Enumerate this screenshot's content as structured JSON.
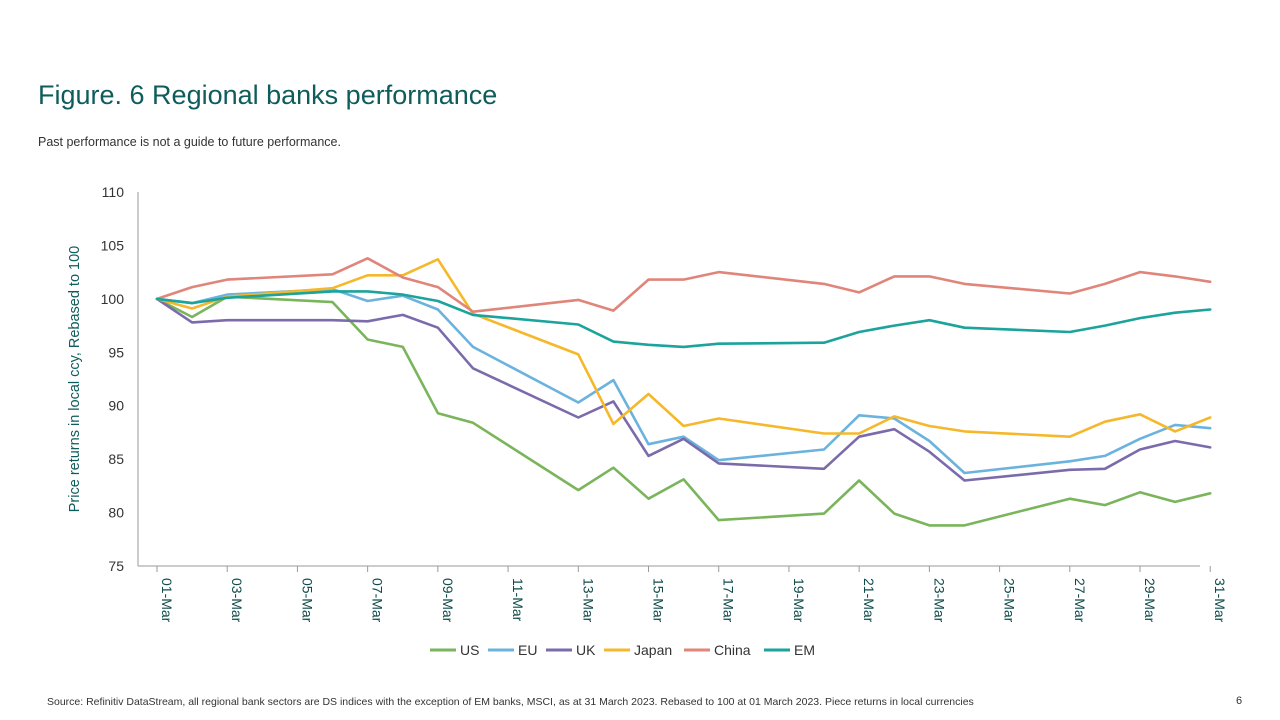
{
  "title": "Figure. 6 Regional banks performance",
  "subtitle": "Past performance is not a guide to future performance.",
  "source": "Source: Refinitiv DataStream, all regional bank sectors are DS indices with the exception of EM banks, MSCI, as at 31 March 2023. Rebased to 100 at 01 March 2023. Piece returns in local currencies",
  "page_number": "6",
  "chart_data": {
    "type": "line",
    "ylabel": "Price returns in local ccy, Rebased to 100",
    "xlabel": "",
    "ylim": [
      75,
      110
    ],
    "yticks": [
      75,
      80,
      85,
      90,
      95,
      100,
      105,
      110
    ],
    "x_dates": [
      "01-Mar",
      "02-Mar",
      "03-Mar",
      "06-Mar",
      "07-Mar",
      "08-Mar",
      "09-Mar",
      "10-Mar",
      "13-Mar",
      "14-Mar",
      "15-Mar",
      "16-Mar",
      "17-Mar",
      "20-Mar",
      "21-Mar",
      "22-Mar",
      "23-Mar",
      "24-Mar",
      "27-Mar",
      "28-Mar",
      "29-Mar",
      "30-Mar",
      "31-Mar"
    ],
    "x_tick_labels": [
      "01-Mar",
      "03-Mar",
      "05-Mar",
      "07-Mar",
      "09-Mar",
      "11-Mar",
      "13-Mar",
      "15-Mar",
      "17-Mar",
      "19-Mar",
      "21-Mar",
      "23-Mar",
      "25-Mar",
      "27-Mar",
      "29-Mar",
      "31-Mar"
    ],
    "legend_position": "bottom",
    "grid": false,
    "series": [
      {
        "name": "US",
        "color": "#7ab55c",
        "values": [
          100,
          98.3,
          100.2,
          99.7,
          96.2,
          95.5,
          89.3,
          88.4,
          82.1,
          84.2,
          81.3,
          83.1,
          79.3,
          79.9,
          83.0,
          79.9,
          78.8,
          78.8,
          81.3,
          80.7,
          81.9,
          81.0,
          81.8
        ]
      },
      {
        "name": "EU",
        "color": "#6bb3de",
        "values": [
          100,
          99.6,
          100.4,
          100.9,
          99.8,
          100.3,
          99.0,
          95.5,
          90.3,
          92.4,
          86.4,
          87.1,
          84.9,
          85.9,
          89.1,
          88.8,
          86.7,
          83.7,
          84.8,
          85.3,
          86.9,
          88.2,
          87.9
        ]
      },
      {
        "name": "UK",
        "color": "#7b6bab",
        "values": [
          100,
          97.8,
          98.0,
          98.0,
          97.9,
          98.5,
          97.3,
          93.5,
          88.9,
          90.4,
          85.3,
          86.9,
          84.6,
          84.1,
          87.1,
          87.8,
          85.7,
          83.0,
          84.0,
          84.1,
          85.9,
          86.7,
          86.1
        ]
      },
      {
        "name": "Japan",
        "color": "#f5b82a",
        "values": [
          100,
          99.1,
          100.2,
          101.0,
          102.2,
          102.2,
          103.7,
          98.6,
          94.8,
          88.3,
          91.1,
          88.1,
          88.8,
          87.4,
          87.4,
          89.0,
          88.1,
          87.6,
          87.1,
          88.5,
          89.2,
          87.6,
          88.9
        ]
      },
      {
        "name": "China",
        "color": "#e0857a",
        "values": [
          100,
          101.1,
          101.8,
          102.3,
          103.8,
          102.0,
          101.1,
          98.8,
          99.9,
          98.9,
          101.8,
          101.8,
          102.5,
          101.4,
          100.6,
          102.1,
          102.1,
          101.4,
          100.5,
          101.4,
          102.5,
          102.1,
          101.6
        ]
      },
      {
        "name": "EM",
        "color": "#1ba39c",
        "values": [
          100,
          99.6,
          100.1,
          100.7,
          100.7,
          100.4,
          99.8,
          98.5,
          97.6,
          96.0,
          95.7,
          95.5,
          95.8,
          95.9,
          96.9,
          97.5,
          98.0,
          97.3,
          96.9,
          97.5,
          98.2,
          98.7,
          99.0
        ]
      }
    ]
  }
}
